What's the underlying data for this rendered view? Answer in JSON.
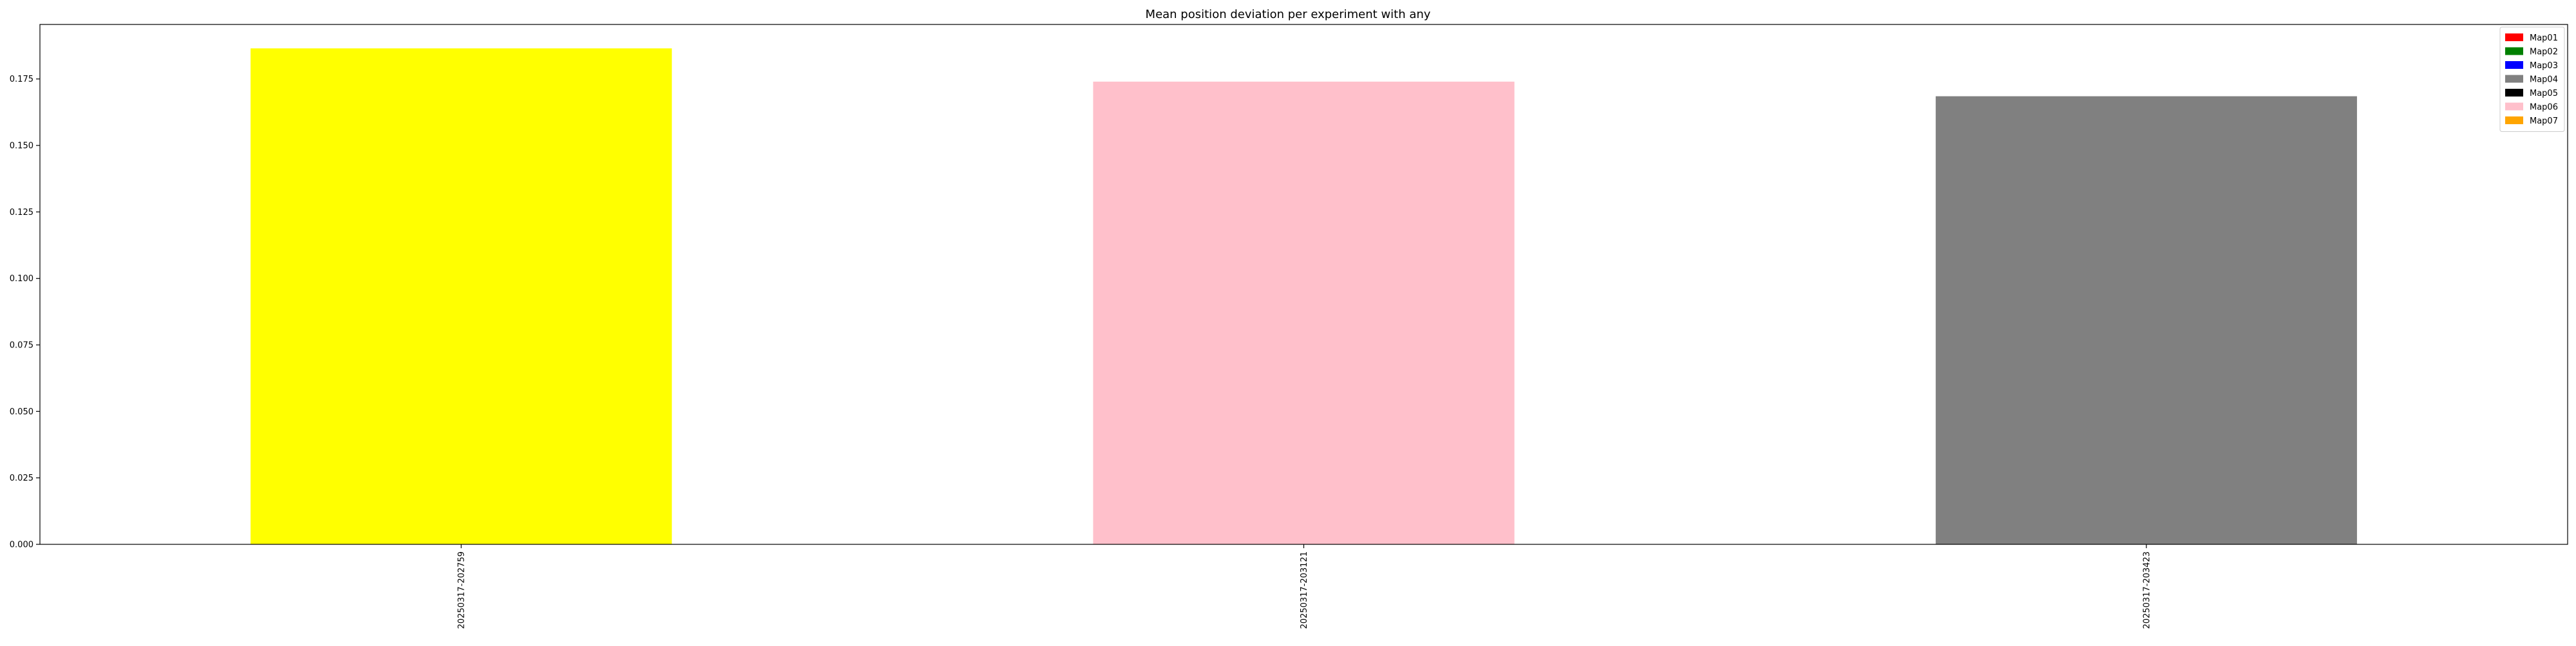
{
  "chart_data": {
    "type": "bar",
    "title": "Mean position deviation per experiment with any",
    "xlabel": "",
    "ylabel": "",
    "categories": [
      "20250317-202759",
      "20250317-203121",
      "20250317-203423"
    ],
    "values": [
      0.1865,
      0.174,
      0.1685
    ],
    "bar_colors": [
      "#ffff00",
      "#ffc0cb",
      "#808080"
    ],
    "ylim": [
      0,
      0.1955
    ],
    "yticks": [
      0.0,
      0.025,
      0.05,
      0.075,
      0.1,
      0.125,
      0.15,
      0.175
    ],
    "ytick_labels": [
      "0.000",
      "0.025",
      "0.050",
      "0.075",
      "0.100",
      "0.125",
      "0.150",
      "0.175"
    ],
    "grid": false,
    "legend": {
      "placement": "top-right",
      "entries": [
        {
          "name": "Map01",
          "color": "#ff0000"
        },
        {
          "name": "Map02",
          "color": "#008000"
        },
        {
          "name": "Map03",
          "color": "#0000ff"
        },
        {
          "name": "Map04",
          "color": "#808080"
        },
        {
          "name": "Map05",
          "color": "#000000"
        },
        {
          "name": "Map06",
          "color": "#ffc0cb"
        },
        {
          "name": "Map07",
          "color": "#ffa500"
        }
      ]
    }
  }
}
